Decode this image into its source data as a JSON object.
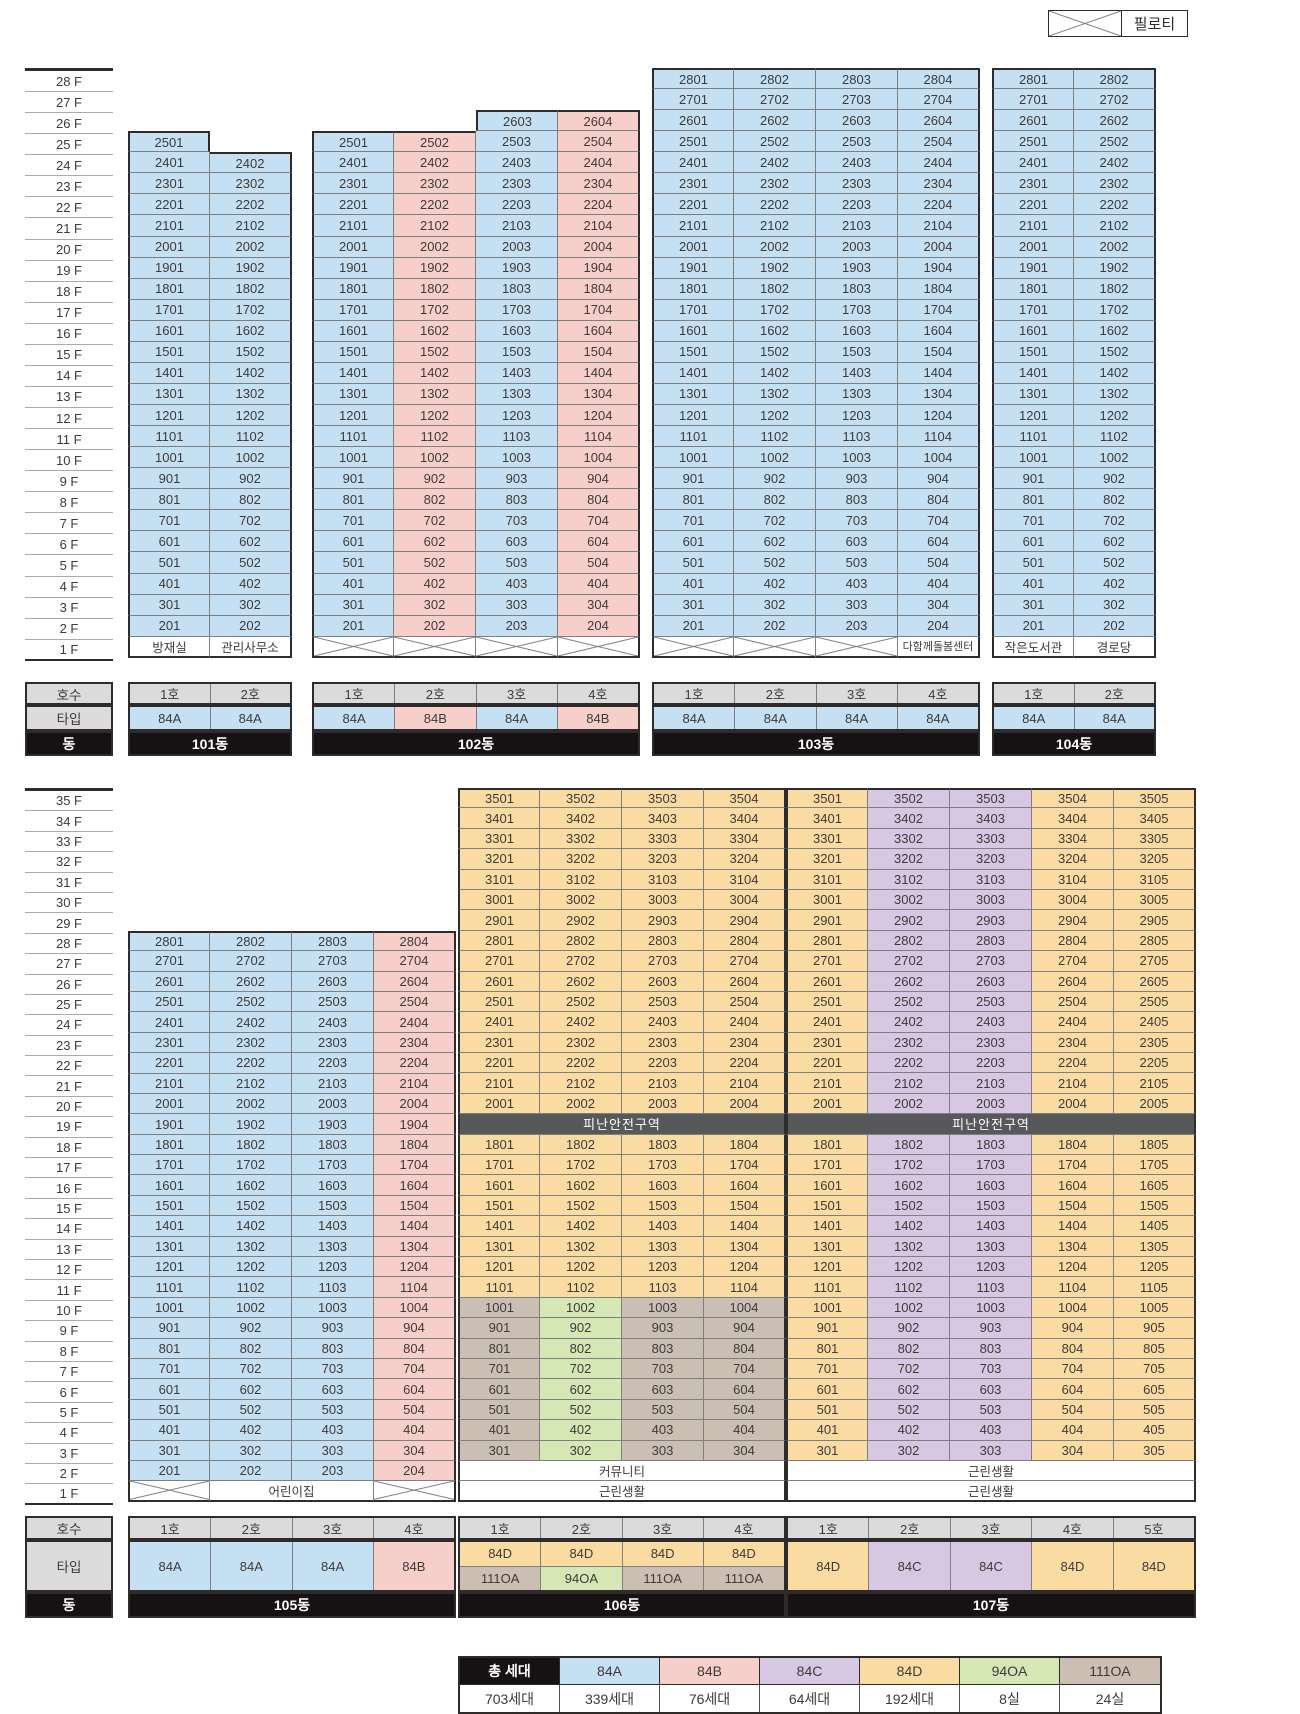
{
  "piloti_legend": {
    "label": "필로티"
  },
  "left_header": {
    "hosu": "호수",
    "type": "타입",
    "dong": "동"
  },
  "floor_label_suffix": " F",
  "unit_number_rule": "floor*100 + column_index",
  "palette": {
    "84A": "#C4E0F2",
    "84B": "#F7CFCA",
    "84C": "#D7C7E2",
    "84D": "#FADCA3",
    "94OA": "#D4E7B4",
    "111OA": "#CBBEB3",
    "header_gray": "#DBDBDC",
    "dong_black": "#161112",
    "refuge_gray": "#57585A",
    "room_white": "#FFFFFF"
  },
  "sections": [
    {
      "top_floor": 28,
      "buildings": [
        {
          "dong": "101동",
          "ho": [
            "1호",
            "2호"
          ],
          "type_rows": [
            [
              "84A",
              "84A"
            ]
          ],
          "col_start": [
            25,
            24
          ],
          "bottom_unit_floor": 2,
          "zones": [
            {
              "from": 2,
              "to": 25,
              "colors": [
                "84A",
                "84A"
              ]
            }
          ],
          "specials": {
            "1": [
              {
                "kind": "room",
                "span": 1,
                "text": "방재실"
              },
              {
                "kind": "room",
                "span": 1,
                "text": "관리사무소"
              }
            ]
          }
        },
        {
          "dong": "102동",
          "ho": [
            "1호",
            "2호",
            "3호",
            "4호"
          ],
          "type_rows": [
            [
              "84A",
              "84B",
              "84A",
              "84B"
            ]
          ],
          "col_start": [
            25,
            25,
            26,
            26
          ],
          "bottom_unit_floor": 2,
          "zones": [
            {
              "from": 2,
              "to": 26,
              "colors": [
                "84A",
                "84B",
                "84A",
                "84B"
              ]
            }
          ],
          "specials": {
            "1": [
              {
                "kind": "piloti",
                "span": 1
              },
              {
                "kind": "piloti",
                "span": 1
              },
              {
                "kind": "piloti",
                "span": 1
              },
              {
                "kind": "piloti",
                "span": 1
              }
            ]
          }
        },
        {
          "dong": "103동",
          "ho": [
            "1호",
            "2호",
            "3호",
            "4호"
          ],
          "type_rows": [
            [
              "84A",
              "84A",
              "84A",
              "84A"
            ]
          ],
          "col_start": [
            28,
            28,
            28,
            28
          ],
          "bottom_unit_floor": 2,
          "zones": [
            {
              "from": 2,
              "to": 28,
              "colors": [
                "84A",
                "84A",
                "84A",
                "84A"
              ]
            }
          ],
          "specials": {
            "1": [
              {
                "kind": "piloti",
                "span": 1
              },
              {
                "kind": "piloti",
                "span": 1
              },
              {
                "kind": "piloti",
                "span": 1
              },
              {
                "kind": "room",
                "span": 1,
                "text": "다함께돌봄센터"
              }
            ]
          }
        },
        {
          "dong": "104동",
          "ho": [
            "1호",
            "2호"
          ],
          "type_rows": [
            [
              "84A",
              "84A"
            ]
          ],
          "col_start": [
            28,
            28
          ],
          "bottom_unit_floor": 2,
          "zones": [
            {
              "from": 2,
              "to": 28,
              "colors": [
                "84A",
                "84A"
              ]
            }
          ],
          "specials": {
            "1": [
              {
                "kind": "room",
                "span": 1,
                "text": "작은도서관"
              },
              {
                "kind": "room",
                "span": 1,
                "text": "경로당"
              }
            ]
          }
        }
      ]
    },
    {
      "top_floor": 35,
      "buildings": [
        {
          "dong": "105동",
          "ho": [
            "1호",
            "2호",
            "3호",
            "4호"
          ],
          "type_rows": [
            [
              "84A",
              "84A",
              "84A",
              "84B"
            ]
          ],
          "col_start": [
            28,
            28,
            28,
            28
          ],
          "bottom_unit_floor": 2,
          "zones": [
            {
              "from": 2,
              "to": 28,
              "colors": [
                "84A",
                "84A",
                "84A",
                "84B"
              ]
            }
          ],
          "specials": {
            "1": [
              {
                "kind": "piloti",
                "span": 1
              },
              {
                "kind": "room",
                "span": 2,
                "text": "어린이집"
              },
              {
                "kind": "piloti",
                "span": 1
              }
            ]
          }
        },
        {
          "dong": "106동",
          "ho": [
            "1호",
            "2호",
            "3호",
            "4호"
          ],
          "type_rows": [
            [
              "84D",
              "84D",
              "84D",
              "84D"
            ],
            [
              "111OA",
              "94OA",
              "111OA",
              "111OA"
            ]
          ],
          "col_start": [
            35,
            35,
            35,
            35
          ],
          "bottom_unit_floor": 3,
          "zones": [
            {
              "from": 11,
              "to": 35,
              "colors": [
                "84D",
                "84D",
                "84D",
                "84D"
              ]
            },
            {
              "from": 3,
              "to": 10,
              "colors": [
                "111OA",
                "94OA",
                "111OA",
                "111OA"
              ]
            }
          ],
          "specials": {
            "19": [
              {
                "kind": "refuge",
                "span": 4,
                "text": "피난안전구역"
              }
            ],
            "2": [
              {
                "kind": "room",
                "span": 4,
                "text": "커뮤니티"
              }
            ],
            "1": [
              {
                "kind": "room",
                "span": 4,
                "text": "근린생활"
              }
            ]
          }
        },
        {
          "dong": "107동",
          "ho": [
            "1호",
            "2호",
            "3호",
            "4호",
            "5호"
          ],
          "type_rows": [
            [
              "84D",
              "84C",
              "84C",
              "84D",
              "84D"
            ]
          ],
          "col_start": [
            35,
            35,
            35,
            35,
            35
          ],
          "bottom_unit_floor": 3,
          "zones": [
            {
              "from": 3,
              "to": 35,
              "colors": [
                "84D",
                "84C",
                "84C",
                "84D",
                "84D"
              ]
            }
          ],
          "specials": {
            "19": [
              {
                "kind": "refuge",
                "span": 5,
                "text": "피난안전구역"
              }
            ],
            "2": [
              {
                "kind": "room",
                "span": 5,
                "text": "근린생활"
              }
            ],
            "1": [
              {
                "kind": "room",
                "span": 5,
                "text": "근린생활"
              }
            ]
          }
        }
      ]
    }
  ],
  "legend": {
    "types": [
      {
        "label": "총 세대",
        "color_key": "dong_black"
      },
      {
        "label": "84A",
        "color_key": "84A"
      },
      {
        "label": "84B",
        "color_key": "84B"
      },
      {
        "label": "84C",
        "color_key": "84C"
      },
      {
        "label": "84D",
        "color_key": "84D"
      },
      {
        "label": "94OA",
        "color_key": "94OA"
      },
      {
        "label": "111OA",
        "color_key": "111OA"
      }
    ],
    "counts": [
      "703세대",
      "339세대",
      "76세대",
      "64세대",
      "192세대",
      "8실",
      "24실"
    ]
  }
}
